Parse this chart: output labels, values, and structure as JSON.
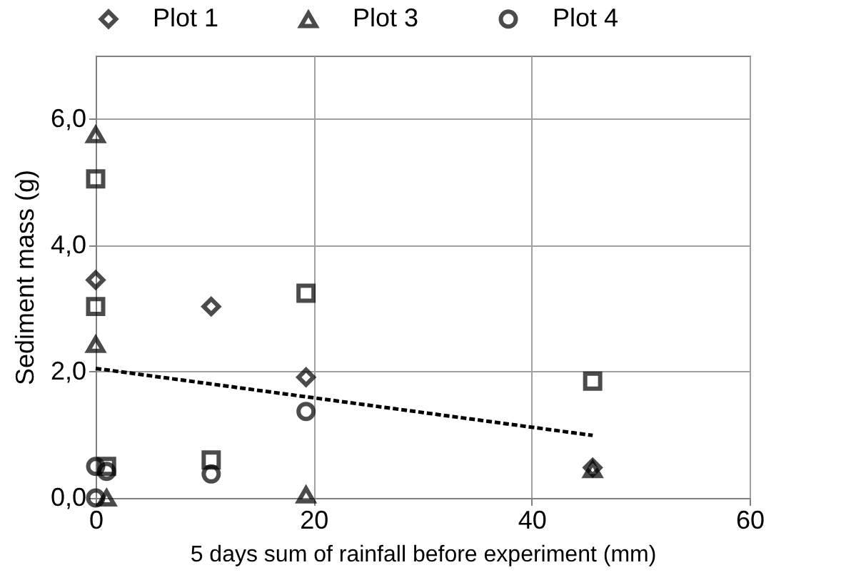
{
  "chart_data": {
    "type": "scatter",
    "xlabel": "5 days sum of rainfall before experiment (mm)",
    "ylabel": "Sediment mass (g)",
    "series": [
      {
        "name": "Plot 1",
        "color": "#000000",
        "marker": "diamond",
        "x": [
          0,
          10.6,
          19.3,
          45.6
        ],
        "values": [
          3.45,
          3.03,
          1.91,
          0.48
        ]
      },
      {
        "name": "Plot 3",
        "color": "#000000",
        "marker": "triangle",
        "x": [
          0,
          0,
          1,
          19.3,
          45.6
        ],
        "values": [
          5.75,
          2.43,
          0,
          0.05,
          0.45
        ]
      },
      {
        "name": "Plot 4",
        "color": "#000000",
        "marker": "circle",
        "x": [
          0,
          0,
          1,
          10.6,
          19.3
        ],
        "values": [
          0.5,
          0,
          0.42,
          0.38,
          1.37
        ]
      },
      {
        "color": "#000000",
        "marker": "square",
        "x": [
          0,
          0,
          1,
          10.6,
          19.3,
          45.6
        ],
        "values": [
          5.05,
          3.03,
          0.5,
          0.6,
          3.24,
          1.85
        ]
      },
      {
        "type": "line",
        "color": "#000000",
        "line_style": "dashed",
        "marker": "none",
        "x": [
          0,
          45.6
        ],
        "values": [
          2.05,
          0.99
        ]
      }
    ],
    "xlim": [
      0,
      60
    ],
    "xticks": [
      0,
      20,
      40,
      60
    ],
    "ylim": [
      0,
      7
    ],
    "yticks": [
      {
        "value": 0,
        "label": "0,0"
      },
      {
        "value": 2,
        "label": "2,0"
      },
      {
        "value": 4,
        "label": "4,0"
      },
      {
        "value": 6,
        "label": "6,0"
      }
    ],
    "grid": true,
    "legend": "top"
  }
}
